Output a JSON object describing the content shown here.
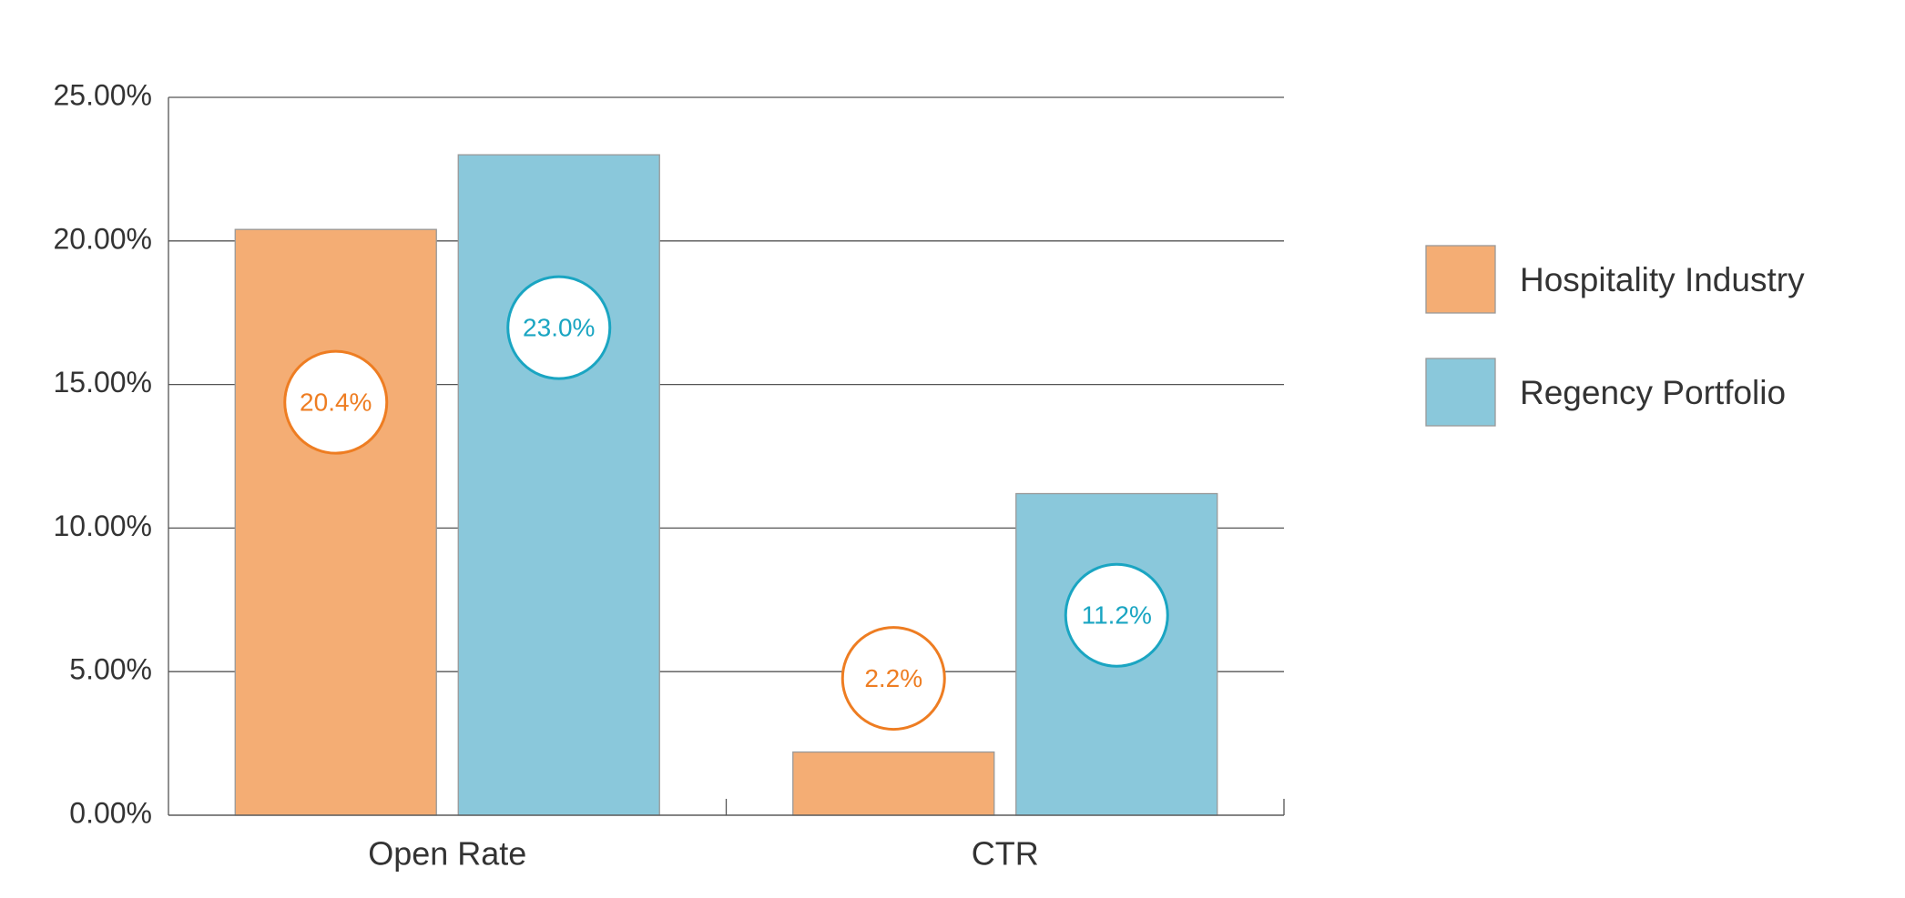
{
  "chart_data": {
    "type": "bar",
    "categories": [
      "Open Rate",
      "CTR"
    ],
    "series": [
      {
        "name": "Hospitality Industry",
        "color": "#f4ad74",
        "label_color": "#ee7d22",
        "values": [
          20.4,
          2.2
        ],
        "value_labels": [
          "20.4%",
          "2.2%"
        ]
      },
      {
        "name": "Regency Portfolio",
        "color": "#8ac8db",
        "label_color": "#1aa5c2",
        "values": [
          23.0,
          11.2
        ],
        "value_labels": [
          "23.0%",
          "11.2%"
        ]
      }
    ],
    "ylim": [
      0,
      25
    ],
    "yticks": [
      {
        "value": 0,
        "label": "0.00%"
      },
      {
        "value": 5,
        "label": "5.00%"
      },
      {
        "value": 10,
        "label": "10.00%"
      },
      {
        "value": 15,
        "label": "15.00%"
      },
      {
        "value": 20,
        "label": "20.00%"
      },
      {
        "value": 25,
        "label": "25.00%"
      }
    ],
    "grid": true,
    "legend": "right"
  }
}
